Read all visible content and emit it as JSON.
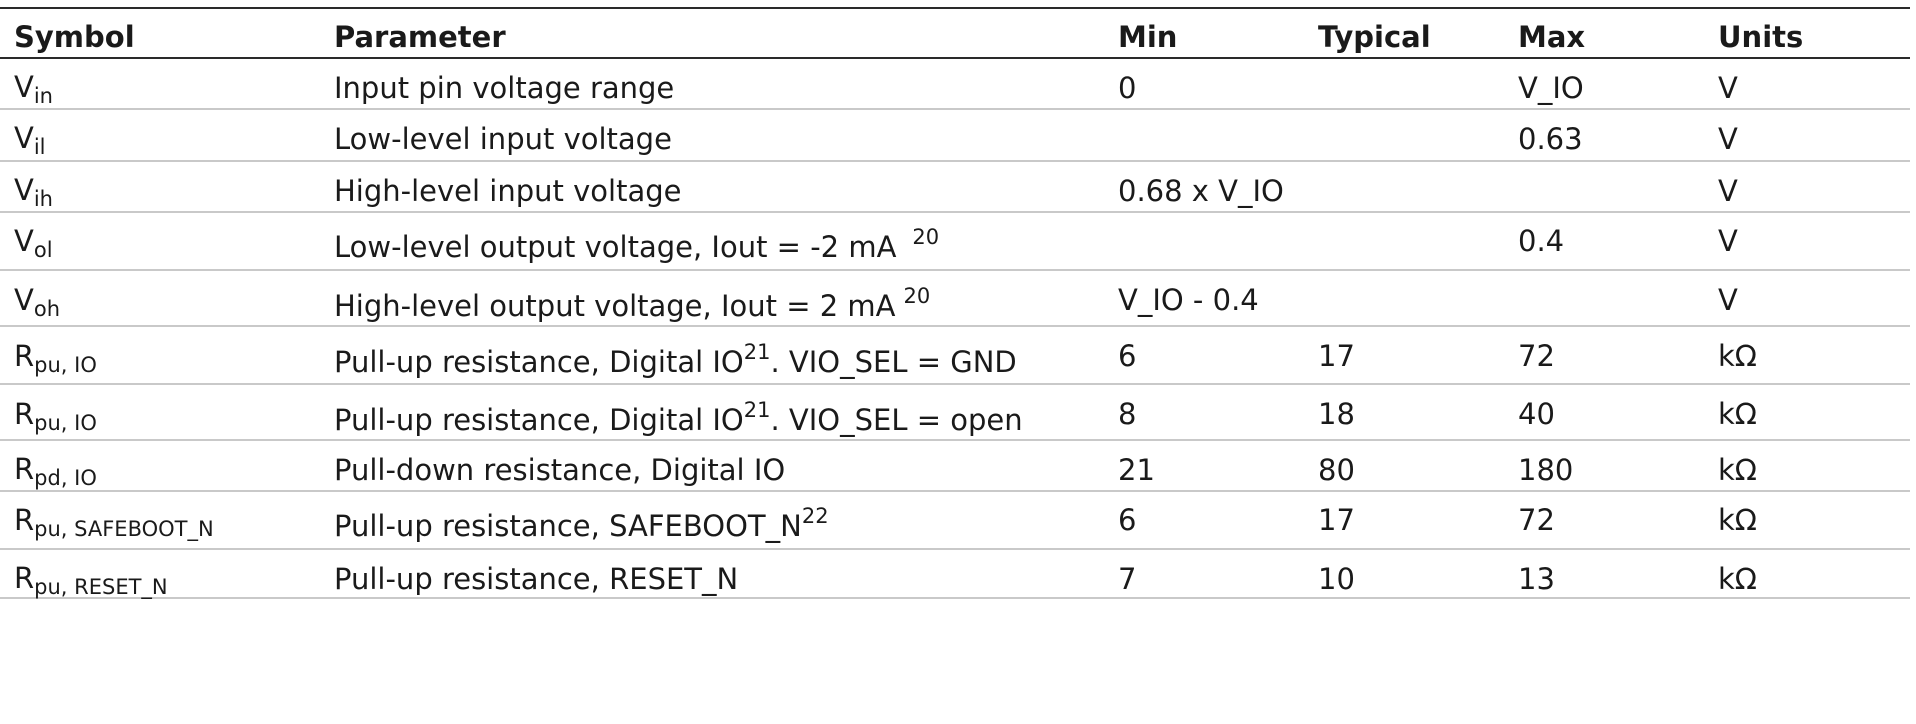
{
  "headers": {
    "symbol": "Symbol",
    "parameter": "Parameter",
    "min": "Min",
    "typical": "Typical",
    "max": "Max",
    "units": "Units"
  },
  "rows": [
    {
      "sym_main": "V",
      "sym_sub": "in",
      "parameter": "Input pin voltage range",
      "footnote": "",
      "min": "0",
      "typical": "",
      "max": "V_IO",
      "units": "V"
    },
    {
      "sym_main": "V",
      "sym_sub": "il",
      "parameter": "Low-level input voltage",
      "footnote": "",
      "min": "",
      "typical": "",
      "max": "0.63",
      "units": "V"
    },
    {
      "sym_main": "V",
      "sym_sub": "ih",
      "parameter": "High-level input voltage",
      "footnote": "",
      "min": "0.68 x V_IO",
      "typical": "",
      "max": "",
      "units": "V"
    },
    {
      "sym_main": "V",
      "sym_sub": "ol",
      "parameter": "Low-level output voltage, Iout = -2 mA",
      "footnote": "20",
      "min": "",
      "typical": "",
      "max": "0.4",
      "units": "V"
    },
    {
      "sym_main": "V",
      "sym_sub": "oh",
      "parameter": "High-level output voltage, Iout = 2 mA",
      "footnote": "20",
      "min": "V_IO - 0.4",
      "typical": "",
      "max": "",
      "units": "V"
    },
    {
      "sym_main": "R",
      "sym_sub": "pu, IO",
      "parameter": "Pull-up resistance, Digital IO",
      "footnote": "21",
      "param_suffix": ". VIO_SEL = GND",
      "min": "6",
      "typical": "17",
      "max": "72",
      "units": "kΩ"
    },
    {
      "sym_main": "R",
      "sym_sub": "pu, IO",
      "parameter": "Pull-up resistance, Digital IO",
      "footnote": "21",
      "param_suffix": ". VIO_SEL = open",
      "min": "8",
      "typical": "18",
      "max": "40",
      "units": "kΩ"
    },
    {
      "sym_main": "R",
      "sym_sub": "pd, IO",
      "parameter": "Pull-down resistance, Digital IO",
      "footnote": "",
      "min": "21",
      "typical": "80",
      "max": "180",
      "units": "kΩ"
    },
    {
      "sym_main": "R",
      "sym_sub": "pu, SAFEBOOT_N",
      "parameter": "Pull-up resistance, SAFEBOOT_N",
      "footnote": "22",
      "min": "6",
      "typical": "17",
      "max": "72",
      "units": "kΩ"
    },
    {
      "sym_main": "R",
      "sym_sub": "pu, RESET_N",
      "parameter": "Pull-up resistance, RESET_N",
      "footnote": "",
      "min": "7",
      "typical": "10",
      "max": "13",
      "units": "kΩ"
    }
  ]
}
